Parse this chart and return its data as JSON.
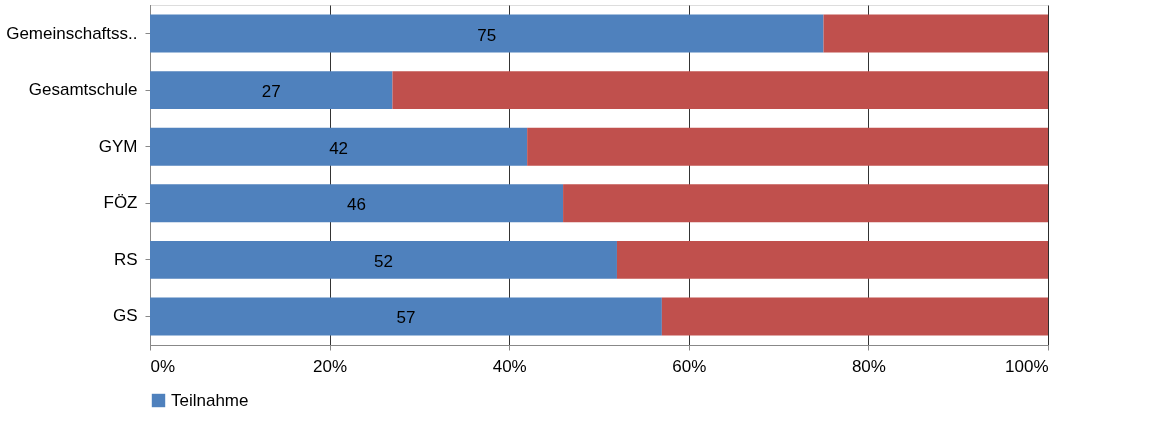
{
  "chart_data": {
    "type": "bar",
    "orientation": "horizontal",
    "stacked": true,
    "categories": [
      "Gemeinschaftss..",
      "Gesamtschule",
      "GYM",
      "FÖZ",
      "RS",
      "GS"
    ],
    "series": [
      {
        "name": "Teilnahme",
        "color": "#4f81bd",
        "values": [
          75,
          27,
          42,
          46,
          52,
          57
        ],
        "value_labels": [
          "75",
          "27",
          "42",
          "46",
          "52",
          "57"
        ]
      },
      {
        "color": "#c0504d",
        "values": [
          25,
          73,
          58,
          54,
          48,
          43
        ]
      }
    ],
    "xlim": [
      0,
      100
    ],
    "xticks": [
      {
        "value": 0,
        "label": "0%"
      },
      {
        "value": 20,
        "label": "20%"
      },
      {
        "value": 40,
        "label": "40%"
      },
      {
        "value": 60,
        "label": "60%"
      },
      {
        "value": 80,
        "label": "80%"
      },
      {
        "value": 100,
        "label": "100%"
      }
    ],
    "grid": "x",
    "legend": "bottom"
  }
}
